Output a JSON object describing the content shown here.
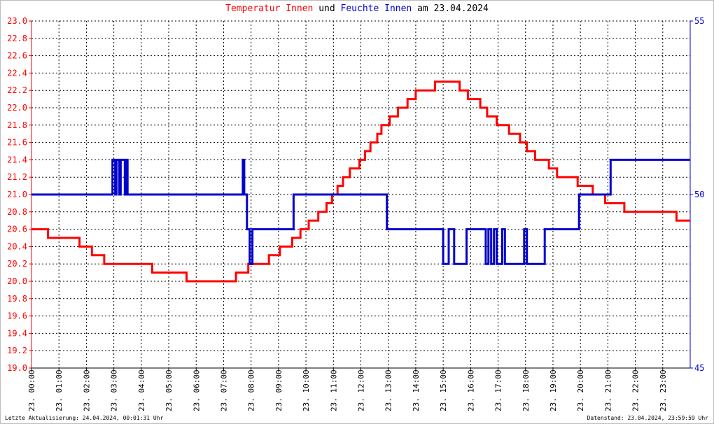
{
  "title": {
    "part1": "Temperatur Innen",
    "part2": " und ",
    "part3": "Feuchte Innen",
    "part4": " am 23.04.2024"
  },
  "footer": {
    "left": "Letzte Aktualisierung: 24.04.2024, 00:01:31 Uhr",
    "right": "Datenstand: 23.04.2024, 23:59:59 Uhr"
  },
  "colors": {
    "temperature": "#ff0000",
    "humidity": "#0000cc",
    "grid": "#000000"
  },
  "chart_data": {
    "type": "line",
    "title": "Temperatur Innen und Feuchte Innen am 23.04.2024",
    "x_unit": "hour of day",
    "xlim": [
      0,
      24
    ],
    "x_tick_labels": [
      "23. 00:00",
      "23. 01:00",
      "23. 02:00",
      "23. 03:00",
      "23. 04:00",
      "23. 05:00",
      "23. 06:00",
      "23. 07:00",
      "23. 08:00",
      "23. 09:00",
      "23. 10:00",
      "23. 11:00",
      "23. 12:00",
      "23. 13:00",
      "23. 14:00",
      "23. 15:00",
      "23. 16:00",
      "23. 17:00",
      "23. 18:00",
      "23. 19:00",
      "23. 20:00",
      "23. 21:00",
      "23. 22:00",
      "23. 23:00"
    ],
    "y_left": {
      "ylim": [
        19.0,
        23.0
      ],
      "tick_labels": [
        "19.0",
        "19.2",
        "19.4",
        "19.6",
        "19.8",
        "20.0",
        "20.2",
        "20.4",
        "20.6",
        "20.8",
        "21.0",
        "21.2",
        "21.4",
        "21.6",
        "21.8",
        "22.0",
        "22.2",
        "22.4",
        "22.6",
        "22.8",
        "23.0"
      ]
    },
    "y_right": {
      "ylim": [
        45,
        55
      ],
      "tick_labels": [
        "45",
        "50",
        "55"
      ]
    },
    "grid": true,
    "series": [
      {
        "name": "Temperatur Innen",
        "axis": "left",
        "step": true,
        "points": [
          [
            0.0,
            20.6
          ],
          [
            0.6,
            20.5
          ],
          [
            1.1,
            20.5
          ],
          [
            1.75,
            20.4
          ],
          [
            2.2,
            20.3
          ],
          [
            2.65,
            20.2
          ],
          [
            3.1,
            20.2
          ],
          [
            4.4,
            20.1
          ],
          [
            5.5,
            20.1
          ],
          [
            5.65,
            20.0
          ],
          [
            7.3,
            20.0
          ],
          [
            7.45,
            20.1
          ],
          [
            7.9,
            20.2
          ],
          [
            8.4,
            20.2
          ],
          [
            8.65,
            20.3
          ],
          [
            9.05,
            20.4
          ],
          [
            9.5,
            20.5
          ],
          [
            9.8,
            20.6
          ],
          [
            10.1,
            20.7
          ],
          [
            10.45,
            20.8
          ],
          [
            10.75,
            20.9
          ],
          [
            10.95,
            21.0
          ],
          [
            11.15,
            21.1
          ],
          [
            11.35,
            21.2
          ],
          [
            11.6,
            21.3
          ],
          [
            11.95,
            21.4
          ],
          [
            12.15,
            21.5
          ],
          [
            12.35,
            21.6
          ],
          [
            12.6,
            21.7
          ],
          [
            12.75,
            21.8
          ],
          [
            13.05,
            21.9
          ],
          [
            13.35,
            22.0
          ],
          [
            13.7,
            22.1
          ],
          [
            14.0,
            22.2
          ],
          [
            14.5,
            22.2
          ],
          [
            14.7,
            22.3
          ],
          [
            15.6,
            22.2
          ],
          [
            15.9,
            22.1
          ],
          [
            16.35,
            22.0
          ],
          [
            16.6,
            21.9
          ],
          [
            16.95,
            21.8
          ],
          [
            17.4,
            21.7
          ],
          [
            17.8,
            21.6
          ],
          [
            18.05,
            21.5
          ],
          [
            18.35,
            21.4
          ],
          [
            18.85,
            21.3
          ],
          [
            19.15,
            21.2
          ],
          [
            19.9,
            21.1
          ],
          [
            20.45,
            21.0
          ],
          [
            20.9,
            20.9
          ],
          [
            21.6,
            20.8
          ],
          [
            22.55,
            20.8
          ],
          [
            23.5,
            20.7
          ],
          [
            24.0,
            20.7
          ]
        ]
      },
      {
        "name": "Feuchte Innen",
        "axis": "right",
        "step": true,
        "points": [
          [
            0.0,
            50
          ],
          [
            2.95,
            50
          ],
          [
            2.95,
            51
          ],
          [
            3.05,
            50
          ],
          [
            3.1,
            51
          ],
          [
            3.2,
            50
          ],
          [
            3.25,
            51
          ],
          [
            3.4,
            50
          ],
          [
            3.45,
            51
          ],
          [
            3.5,
            50
          ],
          [
            7.7,
            50
          ],
          [
            7.7,
            51
          ],
          [
            7.75,
            50
          ],
          [
            7.85,
            49
          ],
          [
            7.95,
            48
          ],
          [
            8.05,
            49
          ],
          [
            9.55,
            49
          ],
          [
            9.55,
            50
          ],
          [
            12.95,
            50
          ],
          [
            12.95,
            49
          ],
          [
            15.0,
            49
          ],
          [
            15.0,
            48
          ],
          [
            15.2,
            48
          ],
          [
            15.2,
            49
          ],
          [
            15.4,
            49
          ],
          [
            15.4,
            48
          ],
          [
            15.85,
            48
          ],
          [
            15.85,
            49
          ],
          [
            16.55,
            49
          ],
          [
            16.55,
            48
          ],
          [
            16.65,
            49
          ],
          [
            16.75,
            48
          ],
          [
            16.85,
            49
          ],
          [
            16.95,
            48
          ],
          [
            17.15,
            49
          ],
          [
            17.25,
            48
          ],
          [
            17.95,
            48
          ],
          [
            17.95,
            49
          ],
          [
            18.05,
            48
          ],
          [
            18.7,
            48
          ],
          [
            18.7,
            49
          ],
          [
            19.95,
            49
          ],
          [
            19.95,
            50
          ],
          [
            21.1,
            50
          ],
          [
            21.1,
            51
          ],
          [
            24.0,
            51
          ]
        ]
      }
    ]
  }
}
